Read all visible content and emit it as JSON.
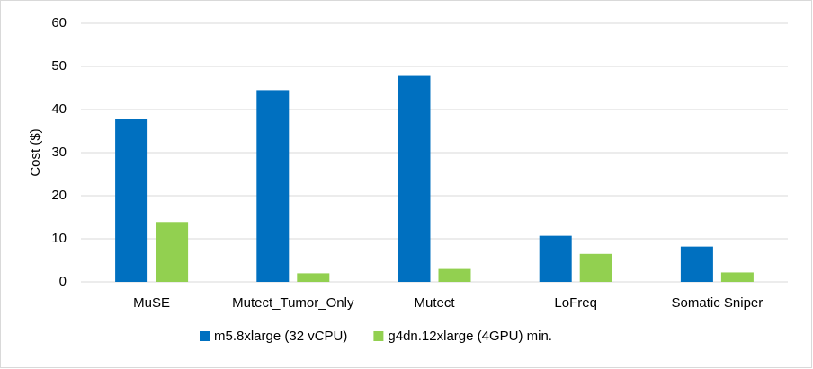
{
  "chart_data": {
    "type": "bar",
    "y_label": "Cost ($)",
    "categories": [
      "MuSE",
      "Mutect_Tumor_Only",
      "Mutect",
      "LoFreq",
      "Somatic Sniper"
    ],
    "series": [
      {
        "name": "m5.8xlarge (32 vCPU)",
        "color": "#0070c0",
        "values": [
          37.8,
          44.5,
          47.8,
          10.7,
          8.2
        ]
      },
      {
        "name": "g4dn.12xlarge (4GPU) min.",
        "color": "#92d050",
        "values": [
          13.9,
          2.0,
          3.0,
          6.5,
          2.2
        ]
      }
    ],
    "ylim": [
      0,
      60
    ],
    "yticks": [
      0,
      10,
      20,
      30,
      40,
      50,
      60
    ],
    "grid": true,
    "legend": "bottom"
  }
}
